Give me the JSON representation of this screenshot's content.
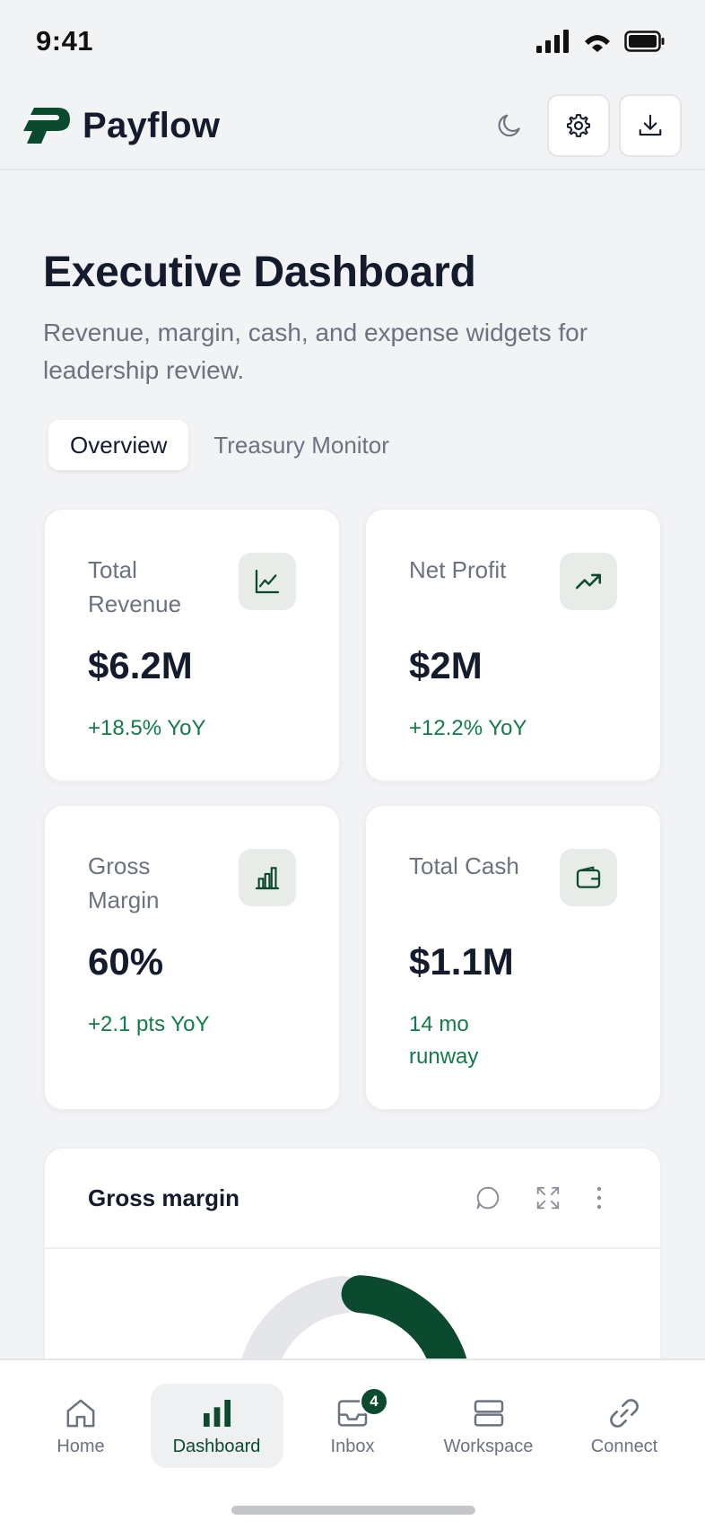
{
  "status_bar": {
    "time": "9:41"
  },
  "header": {
    "app_name": "Payflow",
    "icons": [
      "logo-icon",
      "moon-icon",
      "gear-icon",
      "download-icon"
    ]
  },
  "page": {
    "title": "Executive Dashboard",
    "subtitle": "Revenue, margin, cash, and expense widgets for leadership review."
  },
  "tabs": [
    {
      "label": "Overview",
      "active": true
    },
    {
      "label": "Treasury Monitor",
      "active": false
    }
  ],
  "kpis": [
    {
      "label": "Total Revenue",
      "value": "$6.2M",
      "change": "+18.5% YoY",
      "icon": "line-chart-icon"
    },
    {
      "label": "Net Profit",
      "value": "$2M",
      "change": "+12.2% YoY",
      "icon": "trending-up-icon"
    },
    {
      "label": "Gross Margin",
      "value": "60%",
      "change": "+2.1 pts YoY",
      "icon": "bar-chart-icon"
    },
    {
      "label": "Total Cash",
      "value": "$1.1M",
      "change": "14 mo runway",
      "icon": "wallet-icon"
    }
  ],
  "gross_margin_widget": {
    "title": "Gross margin",
    "gauge_fraction": 0.6,
    "colors": {
      "filled": "#0b4a2e",
      "track": "#e5e6e9"
    }
  },
  "bottom_nav": {
    "items": [
      {
        "label": "Home",
        "icon": "home-icon",
        "active": false
      },
      {
        "label": "Dashboard",
        "icon": "bar-chart-icon",
        "active": true
      },
      {
        "label": "Inbox",
        "icon": "inbox-icon",
        "active": false,
        "badge": "4"
      },
      {
        "label": "Workspace",
        "icon": "workspace-icon",
        "active": false
      },
      {
        "label": "Connect",
        "icon": "link-icon",
        "active": false
      }
    ]
  },
  "colors": {
    "brand": "#0b4a2e",
    "positive": "#137a4a",
    "text_primary": "#141b2d",
    "text_secondary": "#6b7280",
    "background": "#f2f3f5"
  }
}
